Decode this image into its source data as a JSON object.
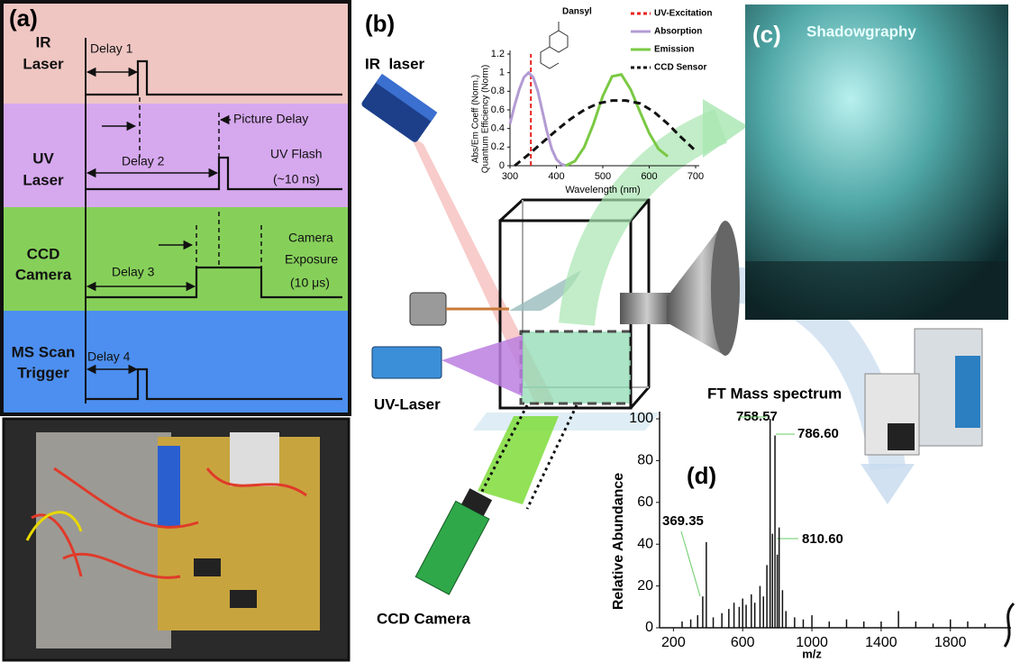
{
  "panel_a": {
    "label": "(a)",
    "rows": [
      {
        "label": [
          "IR",
          "Laser"
        ]
      },
      {
        "label": [
          "UV",
          "Laser"
        ]
      },
      {
        "label": [
          "CCD",
          "Camera"
        ]
      },
      {
        "label": [
          "MS Scan",
          "Trigger"
        ]
      }
    ],
    "annotations": [
      "Delay 1",
      "Picture Delay",
      "Delay 2",
      "UV Flash",
      "(~10 ns)",
      "Delay 3",
      "Camera",
      "Exposure",
      "(10 μs)",
      "Delay 4"
    ]
  },
  "panel_b": {
    "label": "(b)",
    "ir_laser": "IR  laser",
    "uv_laser": "UV-Laser",
    "ccd_camera": "CCD Camera",
    "chart": {
      "type": "line",
      "title": "Dansyl",
      "y_label": [
        "Abs/Em Coeff (Norm.)",
        "Quantum Efficiency (Norm)"
      ],
      "x_label": "Wavelength (nm)",
      "xlim": [
        300,
        700
      ],
      "ylim": [
        0,
        1.2
      ],
      "xticks": [
        300,
        400,
        500,
        600,
        700
      ],
      "yticks": [
        0,
        0.2,
        0.4,
        0.6,
        0.8,
        1,
        1.2
      ],
      "series": [
        {
          "name": "UV-Excitation",
          "color": "#e8231f",
          "dash": "dashed",
          "x": [
            345,
            345
          ],
          "values": [
            0,
            1.2
          ]
        },
        {
          "name": "Absorption",
          "color": "#b39bd3",
          "dash": "solid",
          "x": [
            300,
            310,
            320,
            330,
            340,
            350,
            360,
            370,
            380,
            390,
            400,
            410,
            420
          ],
          "values": [
            0.45,
            0.65,
            0.82,
            0.95,
            1.0,
            0.95,
            0.8,
            0.58,
            0.36,
            0.18,
            0.07,
            0.02,
            0
          ]
        },
        {
          "name": "Emission",
          "color": "#7ac943",
          "dash": "solid",
          "x": [
            420,
            440,
            460,
            480,
            500,
            520,
            540,
            560,
            580,
            600,
            620,
            640
          ],
          "values": [
            0,
            0.05,
            0.2,
            0.45,
            0.75,
            0.96,
            0.98,
            0.82,
            0.58,
            0.35,
            0.18,
            0.1
          ]
        },
        {
          "name": "CCD Sensor",
          "color": "#111111",
          "dash": "dashed",
          "x": [
            310,
            340,
            370,
            400,
            430,
            460,
            490,
            520,
            550,
            580,
            610,
            640,
            670,
            700
          ],
          "values": [
            0,
            0.12,
            0.25,
            0.38,
            0.5,
            0.6,
            0.67,
            0.7,
            0.7,
            0.67,
            0.58,
            0.45,
            0.3,
            0.16
          ]
        }
      ]
    }
  },
  "panel_c": {
    "label": "(c)",
    "title": "Shadowgraphy"
  },
  "panel_d": {
    "label": "(d)",
    "title": "FT Mass spectrum",
    "peak_labels": [
      "758.57",
      "786.60",
      "810.60",
      "369.35"
    ],
    "chart": {
      "type": "stick",
      "y_label": "Relative Abundance",
      "x_label": "m/z",
      "xlim": [
        120,
        2150
      ],
      "ylim": [
        0,
        100
      ],
      "xticks": [
        200,
        600,
        1000,
        1400,
        1800
      ],
      "yticks": [
        0,
        20,
        40,
        60,
        80,
        100
      ],
      "color": "#111111",
      "x": [
        250,
        300,
        340,
        369.35,
        390,
        430,
        480,
        520,
        550,
        580,
        600,
        620,
        650,
        670,
        700,
        720,
        740,
        758.57,
        772,
        786.6,
        800,
        810.6,
        830,
        850,
        900,
        950,
        1000,
        1100,
        1200,
        1300,
        1400,
        1500,
        1600,
        1700,
        1800,
        1900,
        2000
      ],
      "values": [
        3,
        4,
        6,
        15,
        41,
        5,
        7,
        9,
        12,
        10,
        14,
        11,
        16,
        12,
        20,
        15,
        30,
        100,
        45,
        92,
        35,
        48,
        18,
        8,
        5,
        4,
        6,
        3,
        4,
        3,
        3,
        8,
        3,
        2,
        4,
        3,
        2
      ]
    }
  }
}
